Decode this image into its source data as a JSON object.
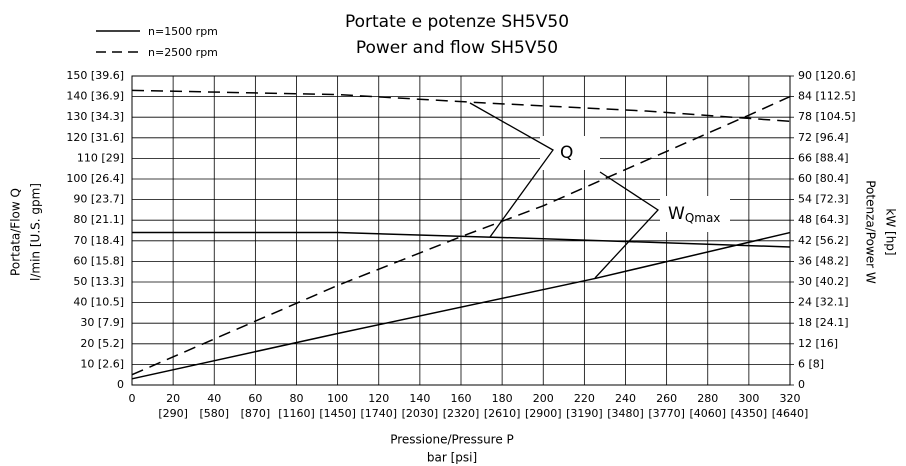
{
  "chart_data": {
    "type": "line",
    "title": "Portate e potenze SH5V50",
    "subtitle": "Power and flow SH5V50",
    "x_label": [
      "Pressione/Pressure P",
      "bar [psi]"
    ],
    "y_label": [
      "Portata/Flow Q",
      "l/min [U.S. gpm]"
    ],
    "y2_label": [
      "Potenza/Power W",
      "kW [hp]"
    ],
    "annotations": [
      {
        "text": "Q"
      },
      {
        "text": "W",
        "sub": "Qmax"
      }
    ],
    "grid": true,
    "xlim": [
      0,
      320
    ],
    "xticks": [
      0,
      20,
      40,
      60,
      80,
      100,
      120,
      140,
      160,
      180,
      200,
      220,
      240,
      260,
      280,
      300,
      320
    ],
    "x2ticks": [
      {
        "value": 20,
        "label": "[290]"
      },
      {
        "value": 40,
        "label": "[580]"
      },
      {
        "value": 60,
        "label": "[870]"
      },
      {
        "value": 80,
        "label": "[1160]"
      },
      {
        "value": 100,
        "label": "[1450]"
      },
      {
        "value": 120,
        "label": "[1740]"
      },
      {
        "value": 140,
        "label": "[2030]"
      },
      {
        "value": 160,
        "label": "[2320]"
      },
      {
        "value": 180,
        "label": "[2610]"
      },
      {
        "value": 200,
        "label": "[2900]"
      },
      {
        "value": 220,
        "label": "[3190]"
      },
      {
        "value": 240,
        "label": "[3480]"
      },
      {
        "value": 260,
        "label": "[3770]"
      },
      {
        "value": 280,
        "label": "[4060]"
      },
      {
        "value": 300,
        "label": "[4350]"
      },
      {
        "value": 320,
        "label": "[4640]"
      }
    ],
    "ylim": [
      0,
      150
    ],
    "yticks": [
      0,
      {
        "value": 10,
        "label": "10 [2.6]"
      },
      {
        "value": 20,
        "label": "20 [5.2]"
      },
      {
        "value": 30,
        "label": "30 [7.9]"
      },
      {
        "value": 40,
        "label": "40 [10.5]"
      },
      {
        "value": 50,
        "label": "50 [13.3]"
      },
      {
        "value": 60,
        "label": "60 [15.8]"
      },
      {
        "value": 70,
        "label": "70 [18.4]"
      },
      {
        "value": 80,
        "label": "80 [21.1]"
      },
      {
        "value": 90,
        "label": "90 [23.7]"
      },
      {
        "value": 100,
        "label": "100 [26.4]"
      },
      {
        "value": 110,
        "label": "110 [29]"
      },
      {
        "value": 120,
        "label": "120 [31.6]"
      },
      {
        "value": 130,
        "label": "130 [34.3]"
      },
      {
        "value": 140,
        "label": "140 [36.9]"
      },
      {
        "value": 150,
        "label": "150 [39.6]"
      }
    ],
    "y2lim": [
      0,
      90
    ],
    "y2ticks": [
      0,
      {
        "value": 6,
        "label": "6 [8]"
      },
      {
        "value": 12,
        "label": "12 [16]"
      },
      {
        "value": 18,
        "label": "18 [24.1]"
      },
      {
        "value": 24,
        "label": "24 [32.1]"
      },
      {
        "value": 30,
        "label": "30 [40.2]"
      },
      {
        "value": 36,
        "label": "36 [48.2]"
      },
      {
        "value": 42,
        "label": "42 [56.2]"
      },
      {
        "value": 48,
        "label": "48 [64.3]"
      },
      {
        "value": 54,
        "label": "54 [72.3]"
      },
      {
        "value": 60,
        "label": "60 [80.4]"
      },
      {
        "value": 66,
        "label": "66 [88.4]"
      },
      {
        "value": 72,
        "label": "72 [96.4]"
      },
      {
        "value": 78,
        "label": "78 [104.5]"
      },
      {
        "value": 84,
        "label": "84 [112.5]"
      },
      {
        "value": 90,
        "label": "90 [120.6]"
      }
    ],
    "series": [
      {
        "name": "n=1500 rpm",
        "color": "#000000",
        "dash": false,
        "x": [
          0,
          100,
          200,
          320
        ],
        "values": [
          74,
          74,
          71,
          67
        ]
      },
      {
        "name": "n=2500 rpm",
        "color": "#000000",
        "dash": true,
        "x": [
          0,
          100,
          170,
          250,
          320
        ],
        "values": [
          143,
          141,
          137,
          133,
          128
        ]
      },
      {
        "name": "n=1500 rpm",
        "color": "#000000",
        "dash": false,
        "axis": "y2",
        "x": [
          0,
          100,
          225,
          320
        ],
        "values": [
          1.8,
          15,
          31,
          44.4
        ]
      },
      {
        "name": "n=2500 rpm",
        "color": "#000000",
        "dash": true,
        "axis": "y2",
        "x": [
          0,
          100,
          160,
          200,
          250,
          300,
          320
        ],
        "values": [
          3,
          29,
          43.2,
          52.2,
          65.4,
          78.6,
          84
        ]
      }
    ]
  }
}
